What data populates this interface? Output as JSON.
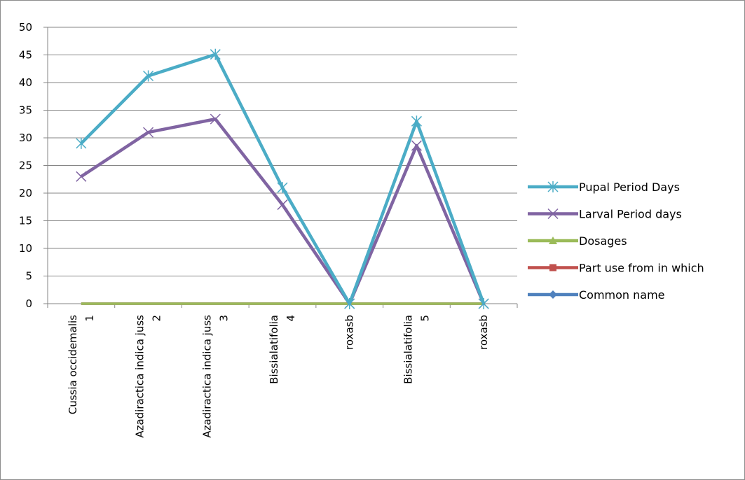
{
  "chart_data": {
    "type": "line",
    "title": "",
    "xlabel": "",
    "ylabel": "",
    "ylim": [
      0,
      50
    ],
    "yticks": [
      0,
      5,
      10,
      15,
      20,
      25,
      30,
      35,
      40,
      45,
      50
    ],
    "grid": "horizontal",
    "legend_position": "right",
    "categories": [
      [
        "Cussia occidemalis",
        "1"
      ],
      [
        "Azadiractica indica juss",
        "2"
      ],
      [
        "Azadiractica indica juss",
        "3"
      ],
      [
        "Bissialatifolia",
        "4"
      ],
      [
        "roxasb"
      ],
      [
        "Bissialatifolia",
        "5"
      ],
      [
        "roxasb"
      ]
    ],
    "series": [
      {
        "name": "Pupal Period Days",
        "color": "#4bacc6",
        "marker": "asterisk",
        "values": [
          29,
          41.2,
          45.1,
          21,
          0,
          33,
          0
        ]
      },
      {
        "name": "Larval Period days",
        "color": "#8064a2",
        "marker": "x",
        "values": [
          23,
          31,
          33.4,
          17.9,
          0,
          28.6,
          0
        ]
      },
      {
        "name": "Dosages",
        "color": "#9bbb59",
        "marker": "triangle",
        "values": [
          0,
          0,
          0,
          0,
          0,
          0,
          0
        ]
      },
      {
        "name": "Part use from in which",
        "color": "#c0504d",
        "marker": "square",
        "values": [
          0,
          0,
          0,
          0,
          0,
          0,
          0
        ]
      },
      {
        "name": "Common  name",
        "color": "#4f81bd",
        "marker": "diamond",
        "values": [
          0,
          0,
          0,
          0,
          0,
          0,
          0
        ]
      }
    ]
  }
}
